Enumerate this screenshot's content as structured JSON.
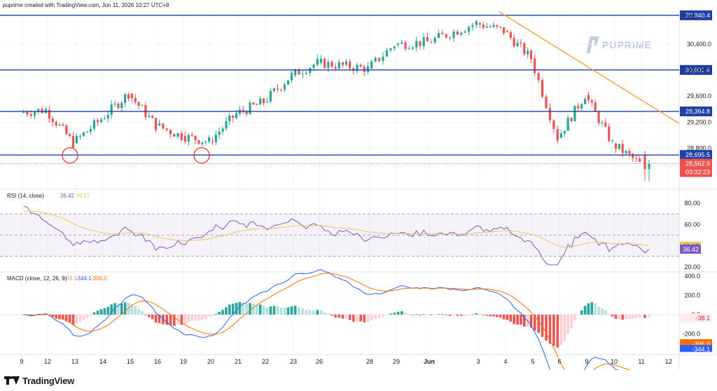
{
  "header": {
    "attribution": "puprime created with TradingView.com, Jun 11, 2026 10:27 UTC+8"
  },
  "watermark": {
    "brand": "PUPRIME"
  },
  "footer": {
    "logo_text": "TradingView"
  },
  "colors": {
    "up": "#26a69a",
    "down": "#ef5350",
    "level": "#1e3fa6",
    "trend": "#f59a23",
    "rsi": "#7e57c2",
    "rsi_ma": "#f0c35a",
    "macd": "#2962ff",
    "signal": "#ff6d00",
    "circle": "#e53935"
  },
  "price_axis": {
    "currency": "USD",
    "ticks": [
      "30,400.0",
      "30,000.0",
      "29,600.0",
      "29,200.0",
      "28,800.0"
    ]
  },
  "price_labels": {
    "l1": "30,840.4",
    "l2": "30,001.4",
    "l3": "29,364.8",
    "l4": "28,695.5",
    "last": "28,562.9",
    "countdown": "03:32:23"
  },
  "rsi_panel": {
    "title": "RSI (14, close)",
    "rsi_value": "36.42",
    "ma_value": "39.17",
    "ticks": [
      "80.00",
      "60.00",
      "20.00"
    ]
  },
  "macd_panel": {
    "title": "MACD (close, 12, 26, 9)",
    "hist_value": "-38.1",
    "macd_value": "-344.1",
    "signal_value": "-306.0",
    "ticks": [
      "400.0",
      "200.0",
      "0.0",
      "-200.0"
    ]
  },
  "time_axis": [
    "9",
    "12",
    "13",
    "14",
    "15",
    "16",
    "19",
    "20",
    "21",
    "22",
    "23",
    "26",
    "28",
    "29",
    "Jun",
    "3",
    "4",
    "5",
    "6",
    "9",
    "10",
    "11",
    "12"
  ],
  "chart_data": {
    "type": "candlestick",
    "symbol_currency": "USD",
    "x": [
      "9",
      "12",
      "13",
      "14",
      "15",
      "16",
      "19",
      "20",
      "21",
      "22",
      "23",
      "26",
      "28",
      "29",
      "Jun",
      "3",
      "4",
      "5",
      "6",
      "9",
      "10",
      "11"
    ],
    "close": [
      29350,
      29390,
      28880,
      29250,
      29640,
      29150,
      28990,
      28900,
      29330,
      29510,
      29920,
      30110,
      30020,
      30390,
      30430,
      30720,
      30600,
      30180,
      28960,
      29620,
      28870,
      28563
    ],
    "horizontal_levels": [
      30840.4,
      30001.4,
      29364.8,
      28695.5
    ],
    "last_price": 28562.9,
    "rsi": {
      "latest": 36.42,
      "ma": 39.17,
      "ylim": [
        20,
        80
      ]
    },
    "macd": {
      "macd_latest": -344.1,
      "signal_latest": -306.0,
      "hist_latest": -38.1
    }
  }
}
